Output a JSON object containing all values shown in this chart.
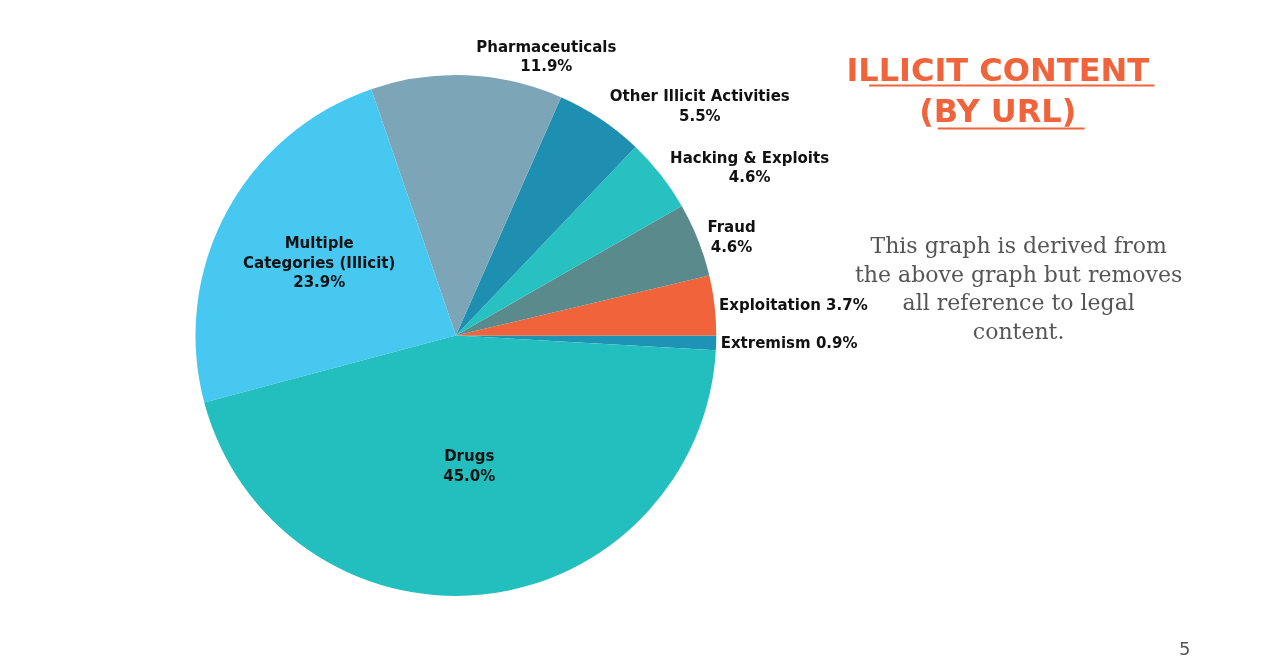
{
  "chart_data": {
    "type": "pie",
    "title": "ILLICIT CONTENT\n(BY URL)",
    "annotations": [
      "This graph is derived from the above graph but removes all reference to legal content.",
      "5"
    ],
    "categories": [
      "Extremism",
      "Exploitation",
      "Fraud",
      "Hacking & Exploits",
      "Other Illicit Activities",
      "Pharmaceuticals",
      "Multiple Categories (Illicit)",
      "Drugs"
    ],
    "values": [
      0.9,
      3.7,
      4.6,
      4.6,
      5.5,
      11.9,
      23.9,
      45.0
    ],
    "colors": [
      "#1f93b6",
      "#f1643b",
      "#5a8a8b",
      "#27c1c1",
      "#1e8fb0",
      "#7ca6b7",
      "#46c8f1",
      "#23bfbf"
    ],
    "value_labels": [
      "0.9%",
      "3.7%",
      "4.6%",
      "4.6%",
      "5.5%",
      "11.9%",
      "23.9%",
      "45.0%"
    ],
    "legend": false
  }
}
